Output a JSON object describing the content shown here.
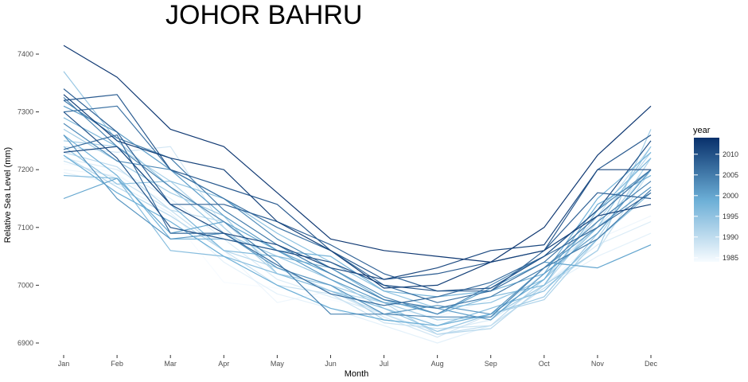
{
  "chart_data": {
    "type": "line",
    "title": "JOHOR BAHRU",
    "xlabel": "Month",
    "ylabel": "Relative Sea Level (mm)",
    "categories": [
      "Jan",
      "Feb",
      "Mar",
      "Apr",
      "May",
      "Jun",
      "Jul",
      "Aug",
      "Sep",
      "Oct",
      "Nov",
      "Dec"
    ],
    "ylim": [
      6890,
      7420
    ],
    "yticks": [
      6900,
      7000,
      7100,
      7200,
      7300,
      7400
    ],
    "grid": false,
    "legend": {
      "title": "year",
      "placement": "right",
      "type": "colorbar",
      "min": 1984,
      "max": 2014,
      "ticks": [
        1985,
        1990,
        1995,
        2000,
        2005,
        2010
      ],
      "low_color": "#f7fbff",
      "high_color": "#08306b"
    },
    "series": [
      {
        "year": 1984,
        "values": [
          7210,
          7195,
          7120,
          7005,
          6995,
          6975,
          6955,
          6935,
          6950,
          7005,
          7090,
          7150
        ]
      },
      {
        "year": 1985,
        "values": [
          7200,
          7190,
          7140,
          7060,
          6970,
          6990,
          6960,
          6945,
          6975,
          7000,
          7080,
          7120
        ]
      },
      {
        "year": 1986,
        "values": [
          7195,
          7175,
          7125,
          7040,
          6985,
          6960,
          6930,
          6900,
          6930,
          6995,
          7050,
          7090
        ]
      },
      {
        "year": 1987,
        "values": [
          7220,
          7200,
          7150,
          7080,
          7010,
          6980,
          6950,
          6920,
          6940,
          7000,
          7070,
          7110
        ]
      },
      {
        "year": 1988,
        "values": [
          7240,
          7230,
          7240,
          7100,
          7020,
          6990,
          6945,
          6910,
          6950,
          7020,
          7100,
          7200
        ]
      },
      {
        "year": 1989,
        "values": [
          7215,
          7185,
          7130,
          7060,
          7000,
          6985,
          6935,
          6925,
          6930,
          6995,
          7060,
          7200
        ]
      },
      {
        "year": 1990,
        "values": [
          7230,
          7205,
          7130,
          7110,
          7030,
          6990,
          6950,
          6915,
          6930,
          7010,
          7120,
          7240
        ]
      },
      {
        "year": 1991,
        "values": [
          7225,
          7170,
          7120,
          7060,
          7030,
          6990,
          6970,
          6915,
          6925,
          7000,
          7110,
          7230
        ]
      },
      {
        "year": 1992,
        "values": [
          7250,
          7240,
          7180,
          7100,
          7020,
          7000,
          6940,
          6930,
          6950,
          6975,
          7080,
          7220
        ]
      },
      {
        "year": 1993,
        "values": [
          7270,
          7215,
          7160,
          7120,
          7020,
          7000,
          6970,
          6940,
          6945,
          7000,
          7060,
          7270
        ]
      },
      {
        "year": 1994,
        "values": [
          7370,
          7250,
          7170,
          7090,
          7050,
          7010,
          6960,
          6920,
          6950,
          6980,
          7090,
          7200
        ]
      },
      {
        "year": 1995,
        "values": [
          7240,
          7175,
          7180,
          7150,
          7090,
          7040,
          6990,
          6960,
          6970,
          7010,
          7100,
          7240
        ]
      },
      {
        "year": 1996,
        "values": [
          7190,
          7185,
          7060,
          7050,
          7020,
          6990,
          6960,
          6930,
          6960,
          6990,
          7080,
          7160
        ]
      },
      {
        "year": 1997,
        "values": [
          7290,
          7240,
          7140,
          7060,
          7050,
          7030,
          6975,
          6950,
          6980,
          7000,
          7130,
          7220
        ]
      },
      {
        "year": 1998,
        "values": [
          7260,
          7190,
          7080,
          7080,
          7060,
          7050,
          6990,
          6980,
          6990,
          7020,
          7150,
          7230
        ]
      },
      {
        "year": 1999,
        "values": [
          7225,
          7160,
          7110,
          7050,
          7000,
          6960,
          6940,
          6930,
          6950,
          7010,
          7140,
          7190
        ]
      },
      {
        "year": 2000,
        "values": [
          7150,
          7185,
          7090,
          7110,
          7060,
          7020,
          6975,
          6950,
          6995,
          7040,
          7030,
          7070
        ]
      },
      {
        "year": 2001,
        "values": [
          7310,
          7265,
          7200,
          7120,
          7060,
          7010,
          6970,
          6960,
          6940,
          7020,
          7090,
          7200
        ]
      },
      {
        "year": 2002,
        "values": [
          7260,
          7150,
          7080,
          7090,
          7030,
          7000,
          6950,
          6965,
          6950,
          7030,
          7100,
          7170
        ]
      },
      {
        "year": 2003,
        "values": [
          7280,
          7215,
          7200,
          7150,
          7080,
          7030,
          6980,
          6950,
          7000,
          7050,
          7130,
          7200
        ]
      },
      {
        "year": 2004,
        "values": [
          7325,
          7240,
          7170,
          7110,
          7040,
          6950,
          6950,
          6945,
          6945,
          7030,
          7110,
          7180
        ]
      },
      {
        "year": 2005,
        "values": [
          7320,
          7255,
          7220,
          7130,
          7070,
          7020,
          6975,
          6960,
          6980,
          7030,
          7080,
          7165
        ]
      },
      {
        "year": 2006,
        "values": [
          7300,
          7310,
          7200,
          7150,
          7100,
          7060,
          7000,
          6970,
          6990,
          7040,
          7120,
          7200
        ]
      },
      {
        "year": 2007,
        "values": [
          7235,
          7260,
          7090,
          7090,
          7035,
          6985,
          6965,
          6980,
          7005,
          7050,
          7100,
          7160
        ]
      },
      {
        "year": 2008,
        "values": [
          7340,
          7265,
          7140,
          7140,
          7110,
          7070,
          7020,
          6990,
          6990,
          7060,
          7160,
          7150
        ]
      },
      {
        "year": 2009,
        "values": [
          7320,
          7330,
          7200,
          7170,
          7140,
          7060,
          7010,
          7020,
          7040,
          7060,
          7200,
          7260
        ]
      },
      {
        "year": 2010,
        "values": [
          7300,
          7220,
          7100,
          7080,
          7060,
          7040,
          7000,
          6990,
          6995,
          7050,
          7130,
          7250
        ]
      },
      {
        "year": 2011,
        "values": [
          7230,
          7240,
          7140,
          7090,
          7070,
          7030,
          7010,
          7030,
          7060,
          7070,
          7200,
          7200
        ]
      },
      {
        "year": 2012,
        "values": [
          7330,
          7250,
          7220,
          7200,
          7110,
          7060,
          6995,
          7000,
          7040,
          7060,
          7120,
          7140
        ]
      },
      {
        "year": 2013,
        "values": [
          7415,
          7360,
          7270,
          7240,
          7160,
          7080,
          7060,
          7050,
          7040,
          7100,
          7225,
          7310
        ]
      }
    ]
  }
}
